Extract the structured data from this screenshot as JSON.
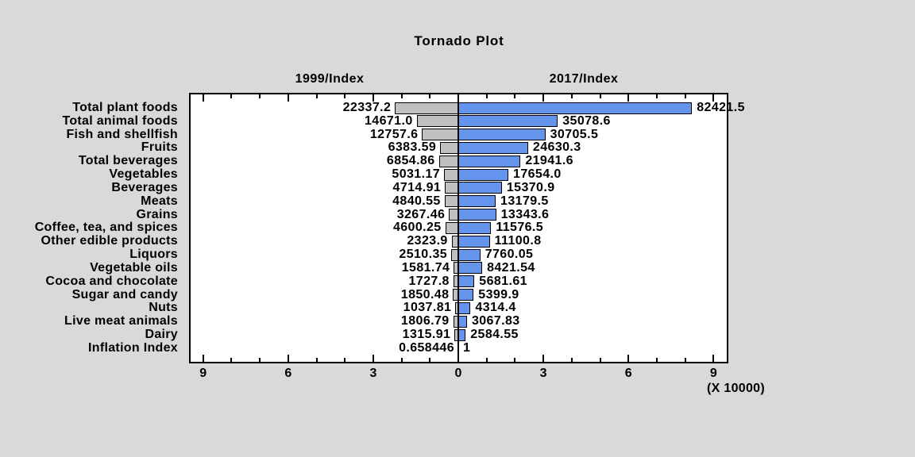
{
  "chart_data": {
    "type": "bar",
    "subtype": "tornado",
    "title": "Tornado Plot",
    "left_header": "1999/Index",
    "right_header": "2017/Index",
    "unit_multiplier_label": "(X 10000)",
    "x_tick_labels": [
      "9",
      "6",
      "3",
      "0",
      "3",
      "6",
      "9"
    ],
    "x_tick_values": [
      -90000,
      -60000,
      -30000,
      0,
      30000,
      60000,
      90000
    ],
    "x_minor_tick_step": 10000,
    "xlim_each_side": 95000,
    "grid": false,
    "categories": [
      "Total plant foods",
      "Total animal foods",
      "Fish and shellfish",
      "Fruits",
      "Total beverages",
      "Vegetables",
      "Beverages",
      "Meats",
      "Grains",
      "Coffee, tea, and spices",
      "Other edible products",
      "Liquors",
      "Vegetable oils",
      "Cocoa and chocolate",
      "Sugar and candy",
      "Nuts",
      "Live meat animals",
      "Dairy",
      "Inflation Index"
    ],
    "series": [
      {
        "name": "1999/Index",
        "direction": "left",
        "color": "#c0c0c0",
        "values": [
          22337.2,
          14671.0,
          12757.6,
          6383.59,
          6854.86,
          5031.17,
          4714.91,
          4840.55,
          3267.46,
          4600.25,
          2323.9,
          2510.35,
          1581.74,
          1727.8,
          1850.48,
          1037.81,
          1806.79,
          1315.91,
          0.658446
        ],
        "value_labels": [
          "22337.2",
          "14671.0",
          "12757.6",
          "6383.59",
          "6854.86",
          "5031.17",
          "4714.91",
          "4840.55",
          "3267.46",
          "4600.25",
          "2323.9",
          "2510.35",
          "1581.74",
          "1727.8",
          "1850.48",
          "1037.81",
          "1806.79",
          "1315.91",
          "0.658446"
        ]
      },
      {
        "name": "2017/Index",
        "direction": "right",
        "color": "#6494ec",
        "values": [
          82421.5,
          35078.6,
          30705.5,
          24630.3,
          21941.6,
          17654.0,
          15370.9,
          13179.5,
          13343.6,
          11576.5,
          11100.8,
          7760.05,
          8421.54,
          5681.61,
          5399.9,
          4314.4,
          3067.83,
          2584.55,
          1
        ],
        "value_labels": [
          "82421.5",
          "35078.6",
          "30705.5",
          "24630.3",
          "21941.6",
          "17654.0",
          "15370.9",
          "13179.5",
          "13343.6",
          "11576.5",
          "11100.8",
          "7760.05",
          "8421.54",
          "5681.61",
          "5399.9",
          "4314.4",
          "3067.83",
          "2584.55",
          "1"
        ]
      }
    ],
    "colors": {
      "background": "#d9d9d9",
      "plot_background": "#ffffff",
      "border": "#000000",
      "left_bar": "#c0c0c0",
      "right_bar": "#6494ec",
      "text": "#000000"
    }
  }
}
